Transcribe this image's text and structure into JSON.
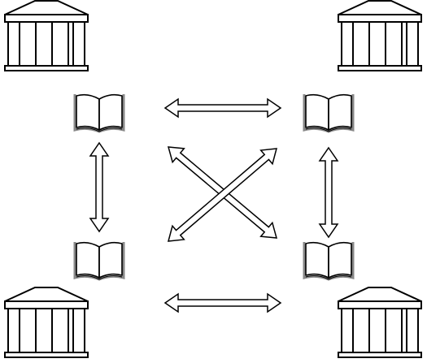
{
  "diagram": {
    "nodes": [
      {
        "id": "institution-top-left",
        "kind": "building"
      },
      {
        "id": "institution-top-right",
        "kind": "building"
      },
      {
        "id": "institution-bottom-left",
        "kind": "building"
      },
      {
        "id": "institution-bottom-right",
        "kind": "building"
      },
      {
        "id": "book-top-left",
        "kind": "book"
      },
      {
        "id": "book-top-right",
        "kind": "book"
      },
      {
        "id": "book-bottom-left",
        "kind": "book"
      },
      {
        "id": "book-bottom-right",
        "kind": "book"
      }
    ],
    "connections": [
      {
        "id": "exchange-top",
        "from": "book-top-left",
        "to": "book-top-right",
        "direction": "bidirectional"
      },
      {
        "id": "exchange-bottom",
        "from": "book-bottom-left",
        "to": "book-bottom-right",
        "direction": "bidirectional"
      },
      {
        "id": "exchange-left",
        "from": "book-top-left",
        "to": "book-bottom-left",
        "direction": "bidirectional"
      },
      {
        "id": "exchange-right",
        "from": "book-top-right",
        "to": "book-bottom-right",
        "direction": "bidirectional"
      },
      {
        "id": "exchange-diagonal-down",
        "from": "book-top-left",
        "to": "book-bottom-right",
        "direction": "bidirectional"
      },
      {
        "id": "exchange-diagonal-up",
        "from": "book-bottom-left",
        "to": "book-top-right",
        "direction": "bidirectional"
      }
    ],
    "colors": {
      "stroke": "#000000",
      "fill": "#ffffff",
      "page_edge": "#888888"
    }
  }
}
